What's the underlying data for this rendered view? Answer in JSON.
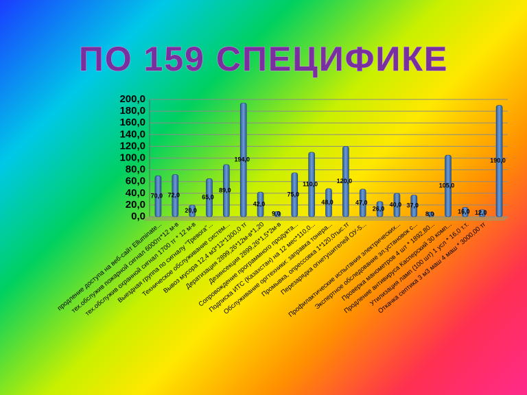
{
  "chart_data": {
    "type": "bar",
    "title": "ПО 159 СПЕЦИФИКЕ",
    "categories": [
      "продление доступа на веб-сайт Elluminate...",
      "тех.обслужив пожарной сигнал 6000тг*12 м-в",
      "тех.обслужив охранной сигнал 1700 тг * 12 м-в",
      "Выездная группа по сигналу \"Тревога\"...",
      "Техническое обслуживание систем...",
      "Вывоз мусора 12,4 м3*12*1300,0 тг",
      "Дератизация 2899,26*12м-в*1,20",
      "Дезинсекция 2899,26*1,5*2м-в",
      "Сопровождение программного продукта...",
      "Подписка ИТС (Казахстан) на 12 мес*110,0...",
      "Обслуживание оргтехники: заправка тонера...",
      "Промывка, опрессовка 1*120,0тыс.тг",
      "Перезарядка огнетушителей ОУ-5...",
      null,
      "Профилактические испытания электрических...",
      "Экспертное обследование эл.установок с...",
      "Проверка манометров 4 шт * 1892,80...",
      "Продление антивируса Касперский 30 комп...",
      "Утилизация ламп (100 шт) 1 усл * 16,0 т.т.",
      "Откачка септика 3 м3 маш  4 маш * 3000,00 тг",
      null
    ],
    "values": [
      70,
      72,
      20,
      65,
      89,
      194,
      42,
      9,
      75,
      110,
      48,
      120,
      47,
      26,
      40,
      37,
      8,
      105,
      16,
      12,
      190
    ],
    "value_labels": [
      "70,0",
      "72,0",
      "20,0",
      "65,0",
      "89,0",
      "194,0",
      "42,0",
      "9,0",
      "75,0",
      "110,0",
      "48,0",
      "120,0",
      "47,0",
      "26,0",
      "40,0",
      "37,0",
      "8,0",
      "105,0",
      "16,0",
      "12,0",
      "190,0"
    ],
    "color": "#4f81bd",
    "ylim": [
      0,
      200
    ],
    "yticks": [
      {
        "value": 0,
        "label": "0,0"
      },
      {
        "value": 20,
        "label": "20,0"
      },
      {
        "value": 40,
        "label": "40,0"
      },
      {
        "value": 60,
        "label": "60,0"
      },
      {
        "value": 80,
        "label": "80,0"
      },
      {
        "value": 100,
        "label": "100,0"
      },
      {
        "value": 120,
        "label": "120,0"
      },
      {
        "value": 140,
        "label": "140,0"
      },
      {
        "value": 160,
        "label": "160,0"
      },
      {
        "value": 180,
        "label": "180,0"
      },
      {
        "value": 200,
        "label": "200,0"
      }
    ],
    "grid": true
  }
}
